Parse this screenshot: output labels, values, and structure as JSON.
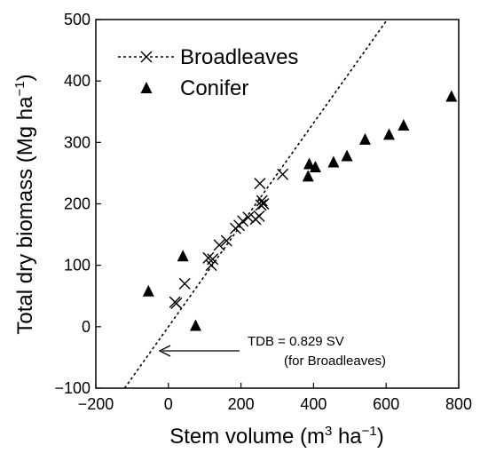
{
  "chart_data": {
    "type": "scatter",
    "xlabel": "Stem volume (m3 ha−1)",
    "ylabel": "Total dry biomass (Mg ha−1)",
    "xlim": [
      -200,
      800
    ],
    "ylim": [
      -100,
      500
    ],
    "x_ticks": [
      -200,
      0,
      200,
      400,
      600,
      800
    ],
    "y_ticks": [
      -100,
      0,
      100,
      200,
      300,
      400,
      500
    ],
    "legend_position": "top-left",
    "series": [
      {
        "name": "Broadleaves",
        "marker": "x",
        "line_style": "dotted",
        "color": "#000000",
        "points": [
          [
            18,
            40
          ],
          [
            22,
            38
          ],
          [
            45,
            70
          ],
          [
            110,
            112
          ],
          [
            118,
            100
          ],
          [
            122,
            110
          ],
          [
            140,
            133
          ],
          [
            160,
            140
          ],
          [
            185,
            160
          ],
          [
            195,
            165
          ],
          [
            205,
            172
          ],
          [
            220,
            178
          ],
          [
            240,
            175
          ],
          [
            250,
            180
          ],
          [
            255,
            198
          ],
          [
            258,
            205
          ],
          [
            252,
            233
          ],
          [
            262,
            200
          ],
          [
            315,
            248
          ]
        ],
        "fit_line": {
          "label": "TDB = 0.829 SV",
          "note": "(for Broadleaves)",
          "slope": 0.829,
          "intercept": 0
        }
      },
      {
        "name": "Conifer",
        "marker": "triangle",
        "color": "#000000",
        "points": [
          [
            -55,
            58
          ],
          [
            40,
            115
          ],
          [
            75,
            2
          ],
          [
            385,
            245
          ],
          [
            388,
            265
          ],
          [
            405,
            260
          ],
          [
            455,
            268
          ],
          [
            492,
            278
          ],
          [
            542,
            305
          ],
          [
            608,
            313
          ],
          [
            648,
            328
          ],
          [
            780,
            375
          ]
        ]
      }
    ]
  }
}
